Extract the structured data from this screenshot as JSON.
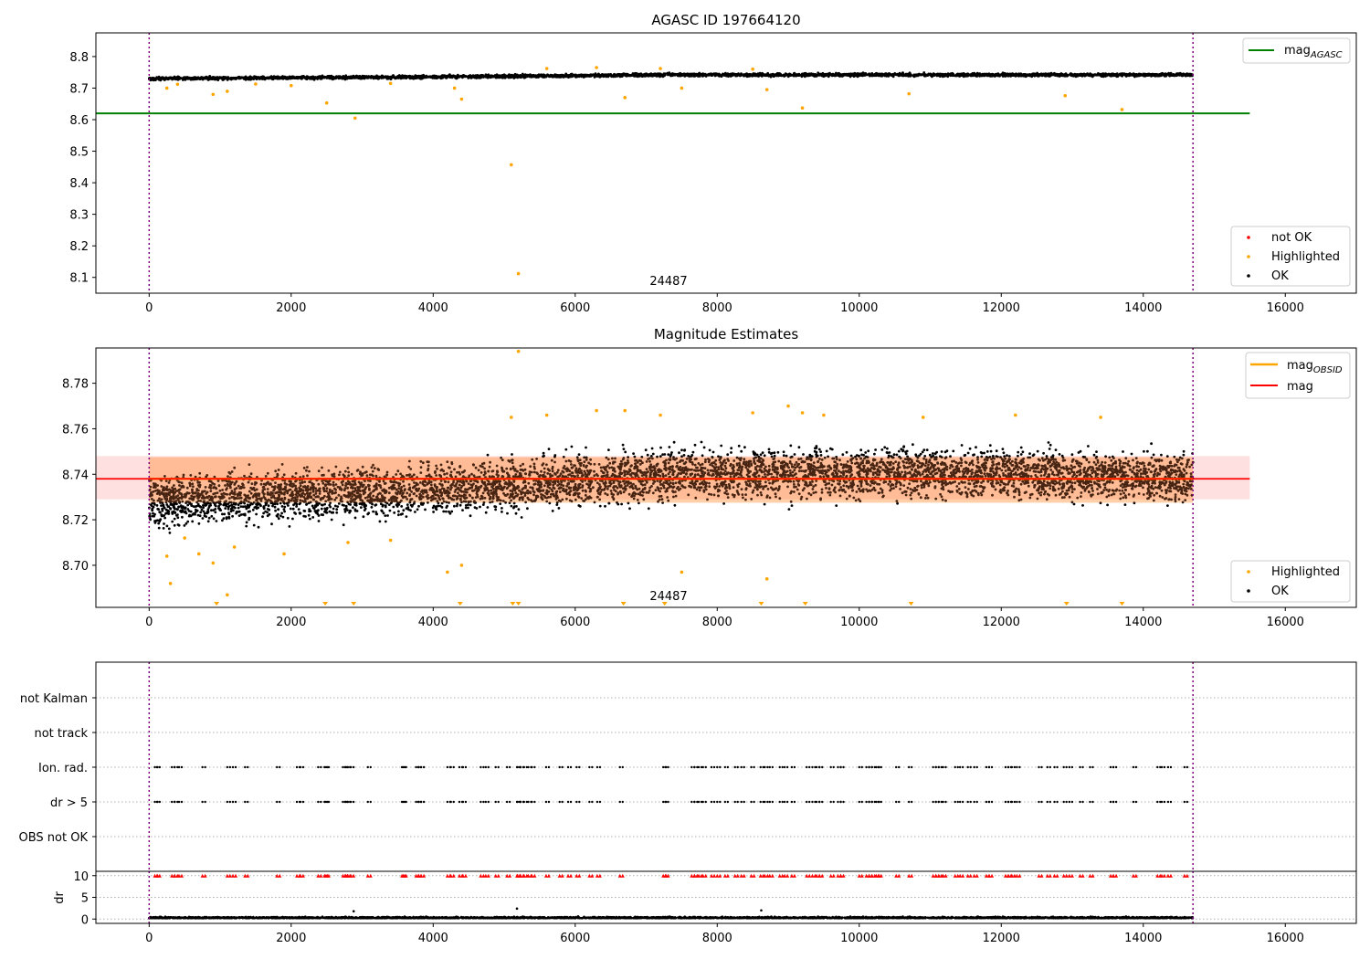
{
  "chart_data": [
    {
      "type": "scatter",
      "title": "AGASC ID 197664120",
      "xlim": [
        -750,
        17000
      ],
      "ylim": [
        8.05,
        8.875
      ],
      "xticks": [
        0,
        2000,
        4000,
        6000,
        8000,
        10000,
        12000,
        14000,
        16000
      ],
      "yticks": [
        8.1,
        8.2,
        8.3,
        8.4,
        8.5,
        8.6,
        8.7,
        8.8
      ],
      "annotation": "24487",
      "vlines": [
        0,
        14700
      ],
      "ok_trend": {
        "x_start": 0,
        "x_end": 14700,
        "y_center": [
          8.73,
          8.735,
          8.742,
          8.742,
          8.742
        ],
        "spread": 0.008
      },
      "hline": {
        "name": "mag",
        "name_sub": "AGASC",
        "y": 8.62,
        "x_end": 15500,
        "color": "#008000"
      },
      "highlighted": {
        "x": [
          250,
          400,
          900,
          1100,
          1500,
          2000,
          2500,
          2900,
          3400,
          4300,
          4400,
          5100,
          5200,
          5600,
          6300,
          6700,
          7200,
          7500,
          8500,
          8700,
          9200,
          10700,
          12900,
          13700
        ],
        "y": [
          8.7,
          8.712,
          8.68,
          8.69,
          8.713,
          8.708,
          8.653,
          8.605,
          8.715,
          8.7,
          8.665,
          8.457,
          8.112,
          8.762,
          8.765,
          8.67,
          8.762,
          8.7,
          8.76,
          8.695,
          8.637,
          8.682,
          8.676,
          8.632
        ]
      },
      "legend": [
        {
          "label": "not OK",
          "color": "#ff0000"
        },
        {
          "label": "Highlighted",
          "color": "#ffa500"
        },
        {
          "label": "OK",
          "color": "#000000"
        }
      ],
      "legend_line": {
        "label": "mag",
        "sub": "AGASC"
      }
    },
    {
      "type": "scatter",
      "title": "Magnitude Estimates",
      "xlim": [
        -750,
        17000
      ],
      "ylim": [
        8.6815,
        8.7955
      ],
      "xticks": [
        0,
        2000,
        4000,
        6000,
        8000,
        10000,
        12000,
        14000,
        16000
      ],
      "yticks": [
        8.7,
        8.72,
        8.74,
        8.76,
        8.78
      ],
      "annotation": "24487",
      "vlines": [
        0,
        14700
      ],
      "mag": {
        "y": 8.738,
        "lo": 8.729,
        "hi": 8.748,
        "x_start": -750,
        "x_end": 15500,
        "color": "#ff0000"
      },
      "mag_obsid": {
        "y": 8.738,
        "lo": 8.7275,
        "hi": 8.7475,
        "x_start": 0,
        "x_end": 14700,
        "color": "#ffa500"
      },
      "ok_trend": {
        "x_start": 0,
        "x_end": 14700,
        "y_center": [
          8.728,
          8.733,
          8.74,
          8.741,
          8.738
        ],
        "spread": 0.01
      },
      "highlighted": {
        "x": [
          250,
          300,
          500,
          700,
          900,
          1100,
          1200,
          1900,
          2800,
          3400,
          4200,
          4400,
          5100,
          5200,
          5600,
          6300,
          6700,
          7200,
          7500,
          8500,
          8700,
          9000,
          9200,
          9500,
          10900,
          12200,
          13400
        ],
        "y": [
          8.704,
          8.692,
          8.712,
          8.705,
          8.701,
          8.687,
          8.708,
          8.705,
          8.71,
          8.711,
          8.697,
          8.7,
          8.765,
          8.794,
          8.766,
          8.768,
          8.768,
          8.766,
          8.697,
          8.767,
          8.694,
          8.77,
          8.767,
          8.766,
          8.765,
          8.766,
          8.765
        ]
      },
      "lower_markers_x": [
        950,
        2480,
        2880,
        4380,
        5120,
        5200,
        6680,
        7260,
        8620,
        9240,
        10730,
        12920,
        13700
      ],
      "legend_top": [
        {
          "label": "mag",
          "sub": "OBSID",
          "color": "#ffa500"
        },
        {
          "label": "mag",
          "sub": "",
          "color": "#ff0000"
        }
      ],
      "legend_bottom": [
        {
          "label": "Highlighted",
          "color": "#ffa500"
        },
        {
          "label": "OK",
          "color": "#000000"
        }
      ]
    },
    {
      "type": "scatter",
      "title": "",
      "xlim": [
        -750,
        17000
      ],
      "categories": [
        "not Kalman",
        "not track",
        "Ion. rad.",
        "dr > 5",
        "OBS not OK"
      ],
      "vlines": [
        0,
        14700
      ],
      "flag_x": [
        80,
        110,
        320,
        360,
        420,
        750,
        1100,
        1180,
        1350,
        1800,
        2080,
        2130,
        2380,
        2470,
        2490,
        2730,
        2760,
        2790,
        2840,
        3080,
        3560,
        3580,
        3760,
        3790,
        3830,
        4200,
        4250,
        4370,
        4420,
        4670,
        4740,
        4880,
        5040,
        5180,
        5190,
        5230,
        5280,
        5340,
        5390,
        5590,
        5780,
        5900,
        6020,
        6200,
        6310,
        6630,
        7240,
        7270,
        7640,
        7680,
        7740,
        7800,
        7920,
        8000,
        8110,
        8250,
        8340,
        8480,
        8610,
        8670,
        8740,
        8880,
        8950,
        9050,
        9260,
        9340,
        9400,
        9440,
        9600,
        9700,
        9740,
        10000,
        10100,
        10140,
        10180,
        10240,
        10270,
        10520,
        10700,
        11040,
        11080,
        11120,
        11180,
        11350,
        11420,
        11530,
        11620,
        11790,
        11830,
        12060,
        12100,
        12150,
        12220,
        12530,
        12650,
        12750,
        12880,
        12960,
        13110,
        13250,
        13540,
        13580,
        13860,
        14200,
        14260,
        14350,
        14580
      ]
    },
    {
      "type": "scatter",
      "title": "",
      "ylabel": "dr",
      "xlim": [
        -750,
        17000
      ],
      "ylim": [
        -1,
        11
      ],
      "xticks": [
        0,
        2000,
        4000,
        6000,
        8000,
        10000,
        12000,
        14000,
        16000
      ],
      "yticks": [
        0,
        5,
        10
      ],
      "vlines": [
        0,
        14700
      ],
      "capped_value": 10,
      "outliers": {
        "x": [
          2880,
          5180,
          8620
        ],
        "y": [
          1.8,
          2.4,
          2.0
        ]
      }
    }
  ]
}
